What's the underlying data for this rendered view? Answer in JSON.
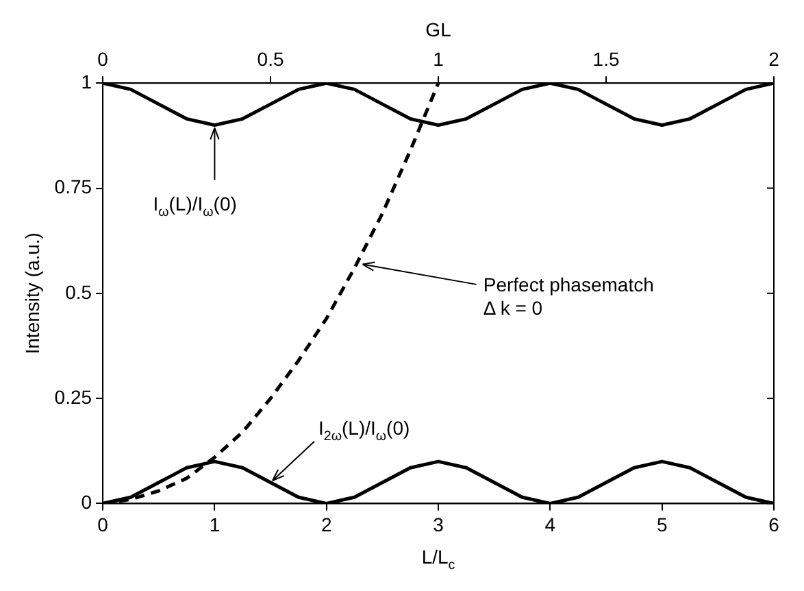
{
  "chart_data": {
    "type": "line",
    "xlabel": "L/L$_{c}$",
    "ylabel": "Intensity (a.u.)",
    "x2label": "GL",
    "xlim": [
      0,
      6
    ],
    "xticks": [
      0,
      1,
      2,
      3,
      4,
      5,
      6
    ],
    "x2lim": [
      0,
      2
    ],
    "x2ticks": [
      0,
      0.5,
      1,
      1.5,
      2
    ],
    "ylim": [
      0,
      1
    ],
    "yticks": [
      0,
      0.25,
      0.5,
      0.75,
      1
    ],
    "marker": "none",
    "series": [
      {
        "color": "#000000",
        "line_style": "solid",
        "x": [
          0,
          0.25,
          0.5,
          0.75,
          1,
          1.25,
          1.5,
          1.75,
          2,
          2.25,
          2.5,
          2.75,
          3,
          3.25,
          3.5,
          3.75,
          4,
          4.25,
          4.5,
          4.75,
          5,
          5.25,
          5.5,
          5.75,
          6
        ],
        "values": [
          1,
          0.985,
          0.95,
          0.915,
          0.9,
          0.915,
          0.95,
          0.985,
          1,
          0.985,
          0.95,
          0.915,
          0.9,
          0.915,
          0.95,
          0.985,
          1,
          0.985,
          0.95,
          0.915,
          0.9,
          0.915,
          0.95,
          0.985,
          1
        ]
      },
      {
        "color": "#000000",
        "line_style": "solid",
        "x": [
          0,
          0.25,
          0.5,
          0.75,
          1,
          1.25,
          1.5,
          1.75,
          2,
          2.25,
          2.5,
          2.75,
          3,
          3.25,
          3.5,
          3.75,
          4,
          4.25,
          4.5,
          4.75,
          5,
          5.25,
          5.5,
          5.75,
          6
        ],
        "values": [
          0,
          0.015,
          0.05,
          0.085,
          0.1,
          0.085,
          0.05,
          0.015,
          0,
          0.015,
          0.05,
          0.085,
          0.1,
          0.085,
          0.05,
          0.015,
          0,
          0.015,
          0.05,
          0.085,
          0.1,
          0.085,
          0.05,
          0.015,
          0
        ]
      },
      {
        "color": "#000000",
        "line_style": "dashed",
        "x": [
          0,
          0.25,
          0.5,
          0.75,
          1,
          1.25,
          1.5,
          1.75,
          2,
          2.25,
          2.5,
          2.75,
          3
        ],
        "values": [
          0,
          0.01,
          0.03,
          0.06,
          0.11,
          0.17,
          0.25,
          0.34,
          0.44,
          0.56,
          0.69,
          0.84,
          1
        ]
      }
    ],
    "annotations": [
      {
        "text": "I$_{ω}$(L)/I$_{ω}$(0)",
        "x": 1,
        "y": 0.9
      },
      {
        "text": "Perfect phasematch\nΔ k = 0",
        "x": 2.3,
        "y": 0.57
      },
      {
        "text": "I$_{2ω}$(L)/I$_{ω}$(0)",
        "x": 1.5,
        "y": 0.05
      }
    ]
  }
}
